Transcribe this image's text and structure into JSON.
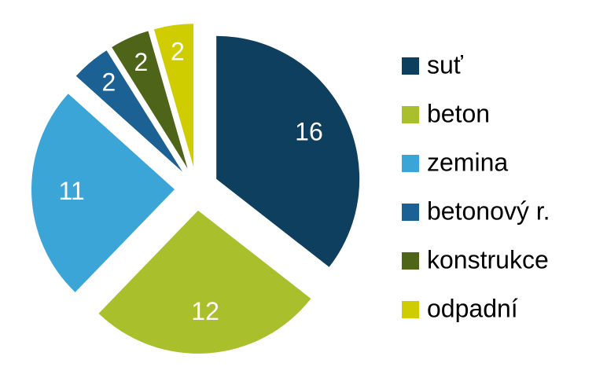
{
  "chart_data": {
    "type": "pie",
    "categories": [
      "suť",
      "beton",
      "zemina",
      "betonový r.",
      "konstrukce",
      "odpadní"
    ],
    "values": [
      16,
      12,
      11,
      2,
      2,
      2
    ],
    "colors": [
      "#0f3f5f",
      "#a9bf2b",
      "#3ba5d8",
      "#1b6193",
      "#4e6419",
      "#cfcc00"
    ],
    "legend": "right"
  }
}
